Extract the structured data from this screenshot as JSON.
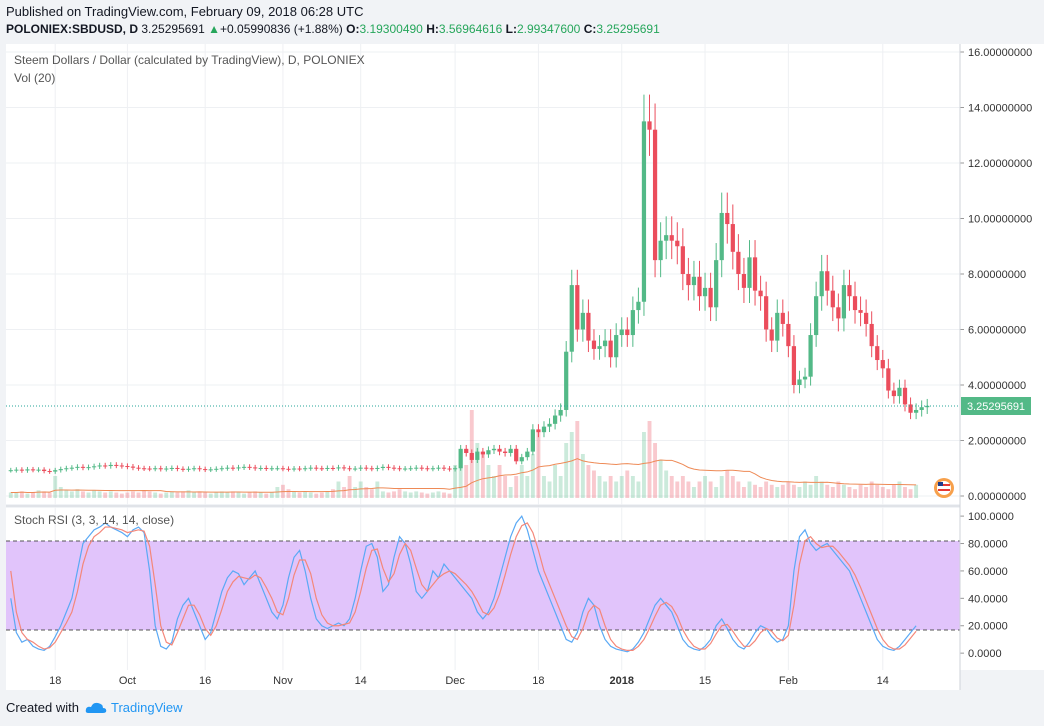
{
  "header": {
    "published": "Published on TradingView.com, February 09, 2018 06:28 UTC",
    "symbol": "POLONIEX:SBDUSD, D",
    "price": "3.25295691",
    "change_arrow": "▲",
    "change": "+0.05990836 (+1.88%)",
    "o_label": "O:",
    "o": "3.19300490",
    "h_label": "H:",
    "h": "3.56964616",
    "l_label": "L:",
    "l": "2.99347600",
    "c_label": "C:",
    "c": "3.25295691"
  },
  "footer": {
    "created_with": "Created with",
    "brand": "TradingView"
  },
  "colors": {
    "up": "#53b987",
    "down": "#eb4d5c",
    "stoch_k": "#5aa9f5",
    "stoch_d": "#f4877a",
    "band": "#e1c4fb",
    "vol_ma": "#ee8a56"
  },
  "chart_data": [
    {
      "type": "candlestick",
      "title": "Steem Dollars / Dollar (calculated by TradingView), D, POLONIEX",
      "indicator": "Vol (20)",
      "ylim": [
        0,
        16
      ],
      "y_ticks": [
        "16.00000000",
        "14.00000000",
        "12.00000000",
        "10.00000000",
        "8.00000000",
        "6.00000000",
        "4.00000000",
        "2.00000000",
        "0.00000000"
      ],
      "last_price": 3.25295691,
      "last_price_label": "3.25295691",
      "x_ticks": [
        "18",
        "Oct",
        "16",
        "Nov",
        "14",
        "Dec",
        "18",
        "2018",
        "15",
        "Feb",
        "14"
      ],
      "closes": [
        0.93,
        0.95,
        0.92,
        0.96,
        0.94,
        0.95,
        0.9,
        0.88,
        0.93,
        0.97,
        1.0,
        1.02,
        1.05,
        1.02,
        1.04,
        1.07,
        1.1,
        1.08,
        1.12,
        1.1,
        1.08,
        1.06,
        1.02,
        1.0,
        0.99,
        0.98,
        1.0,
        0.97,
        0.99,
        1.01,
        0.98,
        0.96,
        0.98,
        1.0,
        0.97,
        0.95,
        0.96,
        0.98,
        1.0,
        1.02,
        1.0,
        1.03,
        1.05,
        1.03,
        1.0,
        1.01,
        0.99,
        1.0,
        1.0,
        0.98,
        0.97,
        0.99,
        0.98,
        1.0,
        1.02,
        1.0,
        0.99,
        1.01,
        1.0,
        1.03,
        1.0,
        0.98,
        0.99,
        1.02,
        1.0,
        0.98,
        1.01,
        1.05,
        1.02,
        1.0,
        0.98,
        0.99,
        1.0,
        1.02,
        1.0,
        0.98,
        1.0,
        1.02,
        0.99,
        0.97,
        1.0,
        1.7,
        1.55,
        1.3,
        1.6,
        1.5,
        1.65,
        1.7,
        1.6,
        1.55,
        1.7,
        1.25,
        1.4,
        1.6,
        2.4,
        2.3,
        2.5,
        2.6,
        2.9,
        3.1,
        5.2,
        7.6,
        6.0,
        6.6,
        5.6,
        5.3,
        5.4,
        5.6,
        5.0,
        5.8,
        6.0,
        5.8,
        6.7,
        7.0,
        13.5,
        13.2,
        8.5,
        9.2,
        9.4,
        9.2,
        9.0,
        8.0,
        7.6,
        7.9,
        7.2,
        7.5,
        6.8,
        8.5,
        10.2,
        9.8,
        8.8,
        8.0,
        7.5,
        8.6,
        7.4,
        7.2,
        6.0,
        5.6,
        6.6,
        6.2,
        5.4,
        4.0,
        4.2,
        4.3,
        5.8,
        7.2,
        8.1,
        7.4,
        6.8,
        6.4,
        7.6,
        7.2,
        6.7,
        6.6,
        6.2,
        5.4,
        4.9,
        4.6,
        3.8,
        3.6,
        3.9,
        3.3,
        3.0,
        3.1,
        3.2,
        3.25
      ],
      "volume": [
        0.05,
        0.05,
        0.06,
        0.04,
        0.05,
        0.07,
        0.06,
        0.05,
        0.2,
        0.1,
        0.07,
        0.06,
        0.08,
        0.06,
        0.05,
        0.07,
        0.06,
        0.05,
        0.06,
        0.05,
        0.04,
        0.05,
        0.06,
        0.05,
        0.07,
        0.06,
        0.05,
        0.04,
        0.05,
        0.06,
        0.05,
        0.06,
        0.07,
        0.05,
        0.06,
        0.05,
        0.04,
        0.05,
        0.06,
        0.05,
        0.06,
        0.05,
        0.04,
        0.05,
        0.06,
        0.05,
        0.04,
        0.05,
        0.1,
        0.12,
        0.08,
        0.06,
        0.05,
        0.06,
        0.05,
        0.04,
        0.05,
        0.06,
        0.08,
        0.15,
        0.1,
        0.2,
        0.1,
        0.15,
        0.1,
        0.08,
        0.15,
        0.06,
        0.05,
        0.06,
        0.08,
        0.06,
        0.05,
        0.06,
        0.05,
        0.04,
        0.05,
        0.06,
        0.05,
        0.04,
        0.3,
        0.35,
        0.3,
        0.8,
        0.5,
        0.4,
        0.3,
        0.2,
        0.3,
        0.2,
        0.1,
        0.2,
        0.3,
        0.2,
        0.4,
        0.6,
        0.2,
        0.15,
        0.3,
        0.2,
        0.5,
        0.6,
        0.7,
        0.4,
        0.3,
        0.25,
        0.2,
        0.15,
        0.2,
        0.15,
        0.2,
        0.25,
        0.2,
        0.15,
        0.6,
        0.7,
        0.5,
        0.35,
        0.25,
        0.2,
        0.15,
        0.2,
        0.15,
        0.1,
        0.15,
        0.2,
        0.15,
        0.1,
        0.2,
        0.25,
        0.2,
        0.15,
        0.1,
        0.15,
        0.12,
        0.1,
        0.15,
        0.12,
        0.1,
        0.12,
        0.15,
        0.12,
        0.1,
        0.15,
        0.12,
        0.2,
        0.15,
        0.12,
        0.1,
        0.15,
        0.12,
        0.1,
        0.08,
        0.12,
        0.1,
        0.15,
        0.12,
        0.1,
        0.08,
        0.12,
        0.15,
        0.1,
        0.08,
        0.12
      ]
    },
    {
      "type": "line",
      "title": "Stoch RSI (3, 3, 14, 14, close)",
      "ylim": [
        -5,
        103
      ],
      "y_ticks": [
        "100.0000",
        "80.0000",
        "60.0000",
        "40.0000",
        "20.0000",
        "0.0000"
      ],
      "band": [
        20,
        80
      ],
      "series": [
        {
          "values": [
            40,
            15,
            8,
            10,
            5,
            3,
            2,
            5,
            12,
            20,
            30,
            40,
            60,
            80,
            85,
            90,
            92,
            95,
            92,
            90,
            88,
            85,
            90,
            92,
            88,
            60,
            20,
            5,
            3,
            8,
            25,
            35,
            40,
            30,
            20,
            10,
            15,
            30,
            45,
            55,
            60,
            58,
            50,
            55,
            60,
            50,
            40,
            30,
            25,
            35,
            55,
            70,
            75,
            60,
            40,
            25,
            20,
            18,
            20,
            22,
            20,
            25,
            40,
            60,
            78,
            80,
            70,
            45,
            50,
            70,
            85,
            80,
            65,
            45,
            40,
            45,
            60,
            55,
            65,
            60,
            55,
            50,
            45,
            40,
            30,
            25,
            30,
            40,
            55,
            70,
            85,
            95,
            100,
            90,
            75,
            60,
            50,
            40,
            30,
            20,
            10,
            8,
            15,
            30,
            40,
            35,
            20,
            10,
            5,
            3,
            2,
            1,
            3,
            8,
            15,
            25,
            35,
            40,
            35,
            30,
            20,
            10,
            5,
            3,
            2,
            5,
            10,
            20,
            25,
            18,
            10,
            5,
            3,
            8,
            15,
            20,
            18,
            12,
            8,
            10,
            20,
            60,
            85,
            90,
            80,
            75,
            78,
            80,
            75,
            70,
            65,
            60,
            50,
            40,
            30,
            20,
            10,
            5,
            3,
            2,
            5,
            10,
            15,
            20
          ]
        },
        {
          "values": [
            60,
            30,
            15,
            10,
            8,
            5,
            3,
            4,
            8,
            15,
            22,
            30,
            45,
            65,
            78,
            85,
            88,
            92,
            92,
            91,
            90,
            88,
            89,
            90,
            89,
            78,
            50,
            20,
            8,
            6,
            15,
            25,
            35,
            35,
            28,
            18,
            13,
            20,
            32,
            45,
            52,
            56,
            55,
            54,
            57,
            55,
            48,
            40,
            30,
            28,
            40,
            57,
            68,
            68,
            58,
            40,
            28,
            22,
            20,
            20,
            21,
            22,
            30,
            45,
            62,
            75,
            76,
            62,
            52,
            58,
            72,
            80,
            75,
            62,
            50,
            45,
            50,
            55,
            58,
            60,
            58,
            54,
            50,
            45,
            38,
            30,
            28,
            33,
            43,
            57,
            72,
            85,
            93,
            95,
            88,
            75,
            60,
            50,
            40,
            30,
            20,
            12,
            10,
            18,
            30,
            35,
            32,
            20,
            10,
            5,
            3,
            2,
            2,
            5,
            10,
            18,
            27,
            35,
            37,
            34,
            27,
            17,
            10,
            5,
            3,
            3,
            7,
            14,
            20,
            21,
            16,
            10,
            5,
            5,
            9,
            15,
            18,
            16,
            11,
            9,
            13,
            35,
            65,
            82,
            85,
            80,
            77,
            78,
            78,
            74,
            69,
            64,
            57,
            48,
            38,
            28,
            18,
            10,
            5,
            3,
            3,
            6,
            11,
            16
          ]
        }
      ]
    }
  ]
}
